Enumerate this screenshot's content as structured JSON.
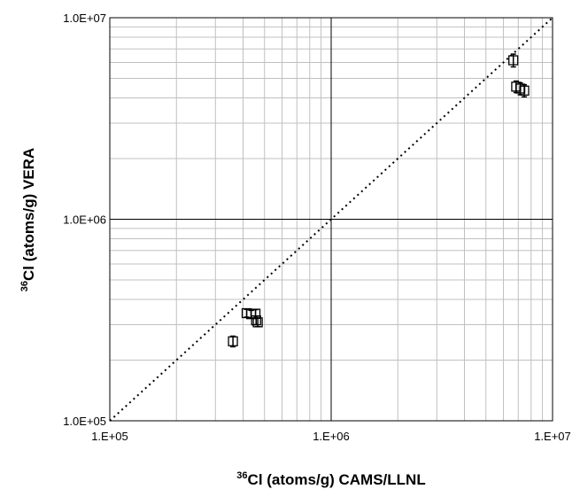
{
  "chart_data": {
    "type": "scatter",
    "title": "",
    "x_scale": "log",
    "y_scale": "log",
    "xlim": [
      100000,
      10000000
    ],
    "ylim": [
      100000,
      10000000
    ],
    "grid": true,
    "legend": "none",
    "xlabel": {
      "superscript": "36",
      "text": "Cl (atoms/g) CAMS/LLNL"
    },
    "ylabel": {
      "superscript": "36",
      "text": "Cl (atoms/g) VERA"
    },
    "x_tick_labels": [
      {
        "value": 100000,
        "label": "1.E+05"
      },
      {
        "value": 1000000,
        "label": "1.E+06"
      },
      {
        "value": 10000000,
        "label": "1.E+07"
      }
    ],
    "y_tick_labels": [
      {
        "value": 100000,
        "label": "1.0E+05"
      },
      {
        "value": 1000000,
        "label": "1.0E+06"
      },
      {
        "value": 10000000,
        "label": "1.0E+07"
      }
    ],
    "reference_line": {
      "style": "dotted",
      "from": [
        100000,
        100000
      ],
      "to": [
        10000000,
        10000000
      ]
    },
    "marker": "open-square",
    "series": [
      {
        "points": [
          {
            "x": 360000,
            "y": 248000,
            "y_err": 15000
          },
          {
            "x": 415000,
            "y": 342000,
            "y_err": 15000
          },
          {
            "x": 435000,
            "y": 338000,
            "y_err": 15000
          },
          {
            "x": 455000,
            "y": 340000,
            "y_err": 16000
          },
          {
            "x": 458000,
            "y": 315000,
            "y_err": 15000
          },
          {
            "x": 466000,
            "y": 308000,
            "y_err": 15000
          },
          {
            "x": 6650000,
            "y": 6150000,
            "y_err": 450000
          },
          {
            "x": 6850000,
            "y": 4550000,
            "y_err": 300000
          },
          {
            "x": 7150000,
            "y": 4450000,
            "y_err": 300000
          },
          {
            "x": 7450000,
            "y": 4350000,
            "y_err": 300000
          }
        ]
      }
    ]
  },
  "colors": {
    "axes": "#000000",
    "minor_grid": "#c0c0c0",
    "major_grid": "#000000",
    "marker": "#000000",
    "background": "#ffffff"
  }
}
